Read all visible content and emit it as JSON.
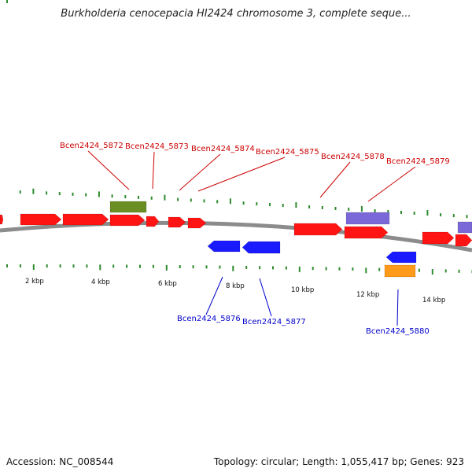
{
  "title": "Burkholderia cenocepacia HI2424 chromosome 3, complete seque...",
  "footer": {
    "accession": "Accession: NC_008544",
    "topology": "Topology: circular; Length: 1,055,417 bp; Genes: 923"
  },
  "colors": {
    "forward": "#ff1414",
    "reverse": "#1a1aff",
    "green": "#6b8e23",
    "purple": "#7b68d8",
    "orange": "#ff9a1a",
    "backbone": "#8c8c8c",
    "ticks": "#2e8b2e",
    "forward_label": "#cc0000",
    "reverse_label": "#0000cc"
  },
  "scale": {
    "unit": "kbp",
    "labels": [
      "2 kbp",
      "4 kbp",
      "6 kbp",
      "8 kbp",
      "10 kbp",
      "12 kbp",
      "14 kbp"
    ]
  },
  "genes": {
    "forward_labels": [
      "Bcen2424_5872",
      "Bcen2424_5873",
      "Bcen2424_5874",
      "Bcen2424_5875",
      "Bcen2424_5878",
      "Bcen2424_5879"
    ],
    "reverse_labels": [
      "Bcen2424_5876",
      "Bcen2424_5877",
      "Bcen2424_5880"
    ]
  }
}
